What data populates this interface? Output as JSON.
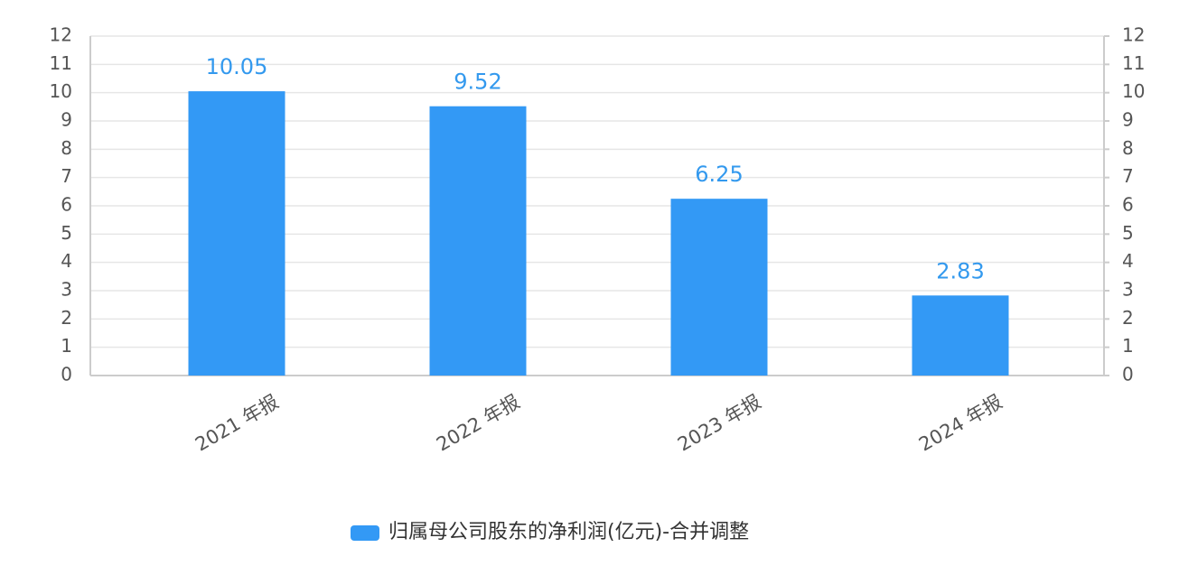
{
  "chart_data": {
    "type": "bar",
    "categories": [
      "2021 年报",
      "2022 年报",
      "2023 年报",
      "2024 年报"
    ],
    "series": [
      {
        "name": "归属母公司股东的净利润(亿元)-合并调整",
        "color": "#3399f5",
        "values": [
          10.05,
          9.52,
          6.25,
          2.83
        ]
      }
    ],
    "ylim": [
      0,
      12
    ],
    "yticks": [
      0,
      1,
      2,
      3,
      4,
      5,
      6,
      7,
      8,
      9,
      10,
      11,
      12
    ],
    "y2lim": [
      0,
      12
    ],
    "y2ticks": [
      0,
      1,
      2,
      3,
      4,
      5,
      6,
      7,
      8,
      9,
      10,
      11,
      12
    ],
    "grid": true
  }
}
